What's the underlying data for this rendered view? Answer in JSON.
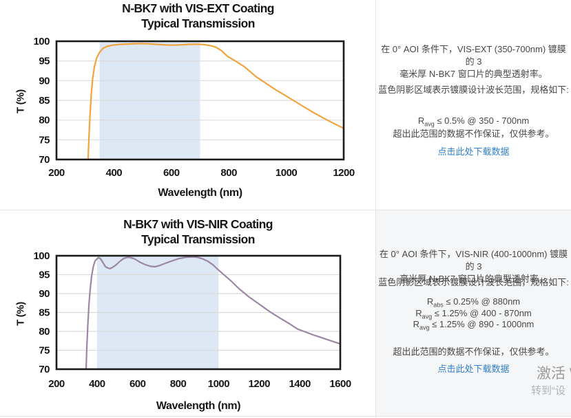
{
  "chart_data": [
    {
      "type": "line",
      "title_line1": "N-BK7 with VIS-EXT Coating",
      "title_line2": "Typical Transmission",
      "xlabel": "Wavelength (nm)",
      "ylabel": "T (%)",
      "xlim": [
        200,
        1200
      ],
      "ylim": [
        70,
        100
      ],
      "x_ticks": [
        200,
        400,
        600,
        800,
        1000,
        1200
      ],
      "y_ticks": [
        70,
        75,
        80,
        85,
        90,
        95,
        100
      ],
      "grid": "horizontal",
      "shaded_region_nm": [
        350,
        700
      ],
      "line_color": "#F2A33C",
      "shade_color": "#DDE8F4",
      "series": [
        [
          310,
          70
        ],
        [
          313,
          75.5
        ],
        [
          317,
          81.5
        ],
        [
          321,
          86.5
        ],
        [
          326,
          90.5
        ],
        [
          332,
          93.5
        ],
        [
          340,
          95.8
        ],
        [
          350,
          97.2
        ],
        [
          362,
          98.2
        ],
        [
          376,
          98.7
        ],
        [
          395,
          99.0
        ],
        [
          420,
          99.2
        ],
        [
          450,
          99.3
        ],
        [
          490,
          99.4
        ],
        [
          520,
          99.35
        ],
        [
          550,
          99.2
        ],
        [
          580,
          99.05
        ],
        [
          605,
          99.0
        ],
        [
          635,
          99.1
        ],
        [
          660,
          99.2
        ],
        [
          690,
          99.25
        ],
        [
          715,
          99.15
        ],
        [
          735,
          98.9
        ],
        [
          755,
          98.5
        ],
        [
          775,
          97.6
        ],
        [
          795,
          96.2
        ],
        [
          825,
          94.9
        ],
        [
          855,
          93.5
        ],
        [
          895,
          91.0
        ],
        [
          930,
          89.3
        ],
        [
          965,
          87.6
        ],
        [
          1000,
          86.1
        ],
        [
          1040,
          84.3
        ],
        [
          1095,
          81.9
        ],
        [
          1145,
          79.9
        ],
        [
          1200,
          77.9
        ]
      ]
    },
    {
      "type": "line",
      "title_line1": "N-BK7 with VIS-NIR Coating",
      "title_line2": "Typical Transmission",
      "xlabel": "Wavelength (nm)",
      "ylabel": "T (%)",
      "xlim": [
        200,
        1600
      ],
      "ylim": [
        70,
        100
      ],
      "x_ticks": [
        200,
        400,
        600,
        800,
        1000,
        1200,
        1400,
        1600
      ],
      "y_ticks": [
        70,
        75,
        80,
        85,
        90,
        95,
        100
      ],
      "grid": "horizontal",
      "shaded_region_nm": [
        400,
        1000
      ],
      "line_color": "#9C87A3",
      "shade_color": "#DDE8F4",
      "series": [
        [
          346,
          70
        ],
        [
          350,
          76
        ],
        [
          355,
          82
        ],
        [
          360,
          87
        ],
        [
          366,
          91
        ],
        [
          373,
          94.5
        ],
        [
          381,
          97
        ],
        [
          390,
          98.6
        ],
        [
          400,
          99.2
        ],
        [
          408,
          99.5
        ],
        [
          416,
          99.3
        ],
        [
          428,
          98.3
        ],
        [
          442,
          97.1
        ],
        [
          456,
          96.7
        ],
        [
          464,
          96.6
        ],
        [
          476,
          96.9
        ],
        [
          492,
          97.5
        ],
        [
          512,
          98.5
        ],
        [
          532,
          99.3
        ],
        [
          552,
          99.6
        ],
        [
          568,
          99.5
        ],
        [
          588,
          99.1
        ],
        [
          612,
          98.3
        ],
        [
          640,
          97.6
        ],
        [
          666,
          97.2
        ],
        [
          686,
          97.1
        ],
        [
          708,
          97.4
        ],
        [
          732,
          97.9
        ],
        [
          762,
          98.5
        ],
        [
          800,
          99.2
        ],
        [
          838,
          99.6
        ],
        [
          868,
          99.7
        ],
        [
          895,
          99.6
        ],
        [
          920,
          99.2
        ],
        [
          945,
          98.6
        ],
        [
          972,
          97.6
        ],
        [
          1000,
          96.2
        ],
        [
          1032,
          94.7
        ],
        [
          1062,
          93.3
        ],
        [
          1100,
          91.3
        ],
        [
          1150,
          89.1
        ],
        [
          1200,
          87.2
        ],
        [
          1250,
          85.3
        ],
        [
          1300,
          83.6
        ],
        [
          1350,
          82.0
        ],
        [
          1390,
          80.6
        ],
        [
          1425,
          79.9
        ],
        [
          1465,
          79.1
        ],
        [
          1505,
          78.4
        ],
        [
          1555,
          77.5
        ],
        [
          1600,
          76.7
        ]
      ]
    }
  ],
  "panels": [
    {
      "desc_line1": "在 0° AOI 条件下，VIS-EXT (350-700nm) 镀膜的 3",
      "desc_line2": "毫米厚 N-BK7 窗口片的典型透射率。",
      "shading_note": "蓝色阴影区域表示镀膜设计波长范围，规格如下:",
      "specs": [
        {
          "symbol": "R",
          "sub": "avg",
          "rest": " ≤ 0.5% @ 350 - 700nm"
        }
      ],
      "disclaimer": "超出此范围的数据不作保证，仅供参考。",
      "download_link": "点击此处下载数据"
    },
    {
      "desc_line1": "在 0° AOI 条件下，VIS-NIR (400-1000nm) 镀膜的 3",
      "desc_line2": "毫米厚 N-BK7 窗口片的典型透射率。",
      "shading_note": "蓝色阴影区域表示镀膜设计波长范围，规格如下:",
      "specs": [
        {
          "symbol": "R",
          "sub": "abs",
          "rest": " ≤ 0.25% @ 880nm"
        },
        {
          "symbol": "R",
          "sub": "avg",
          "rest": " ≤ 1.25% @ 400 - 870nm"
        },
        {
          "symbol": "R",
          "sub": "avg",
          "rest": " ≤ 1.25% @ 890 - 1000nm"
        }
      ],
      "disclaimer": "超出此范围的数据不作保证，仅供参考。",
      "download_link": "点击此处下载数据"
    }
  ],
  "watermark": {
    "line1": "激活 W",
    "line2": "转到“设"
  },
  "colors": {
    "accent_orange": "#F2A33C",
    "accent_purple": "#9C87A3",
    "shade_blue": "#DDE8F4",
    "link_blue": "#2e7fc9",
    "panel_gray": "#f5f6f7",
    "grid_gray": "#dbdbdb",
    "axis_black": "#1c1c1c"
  }
}
